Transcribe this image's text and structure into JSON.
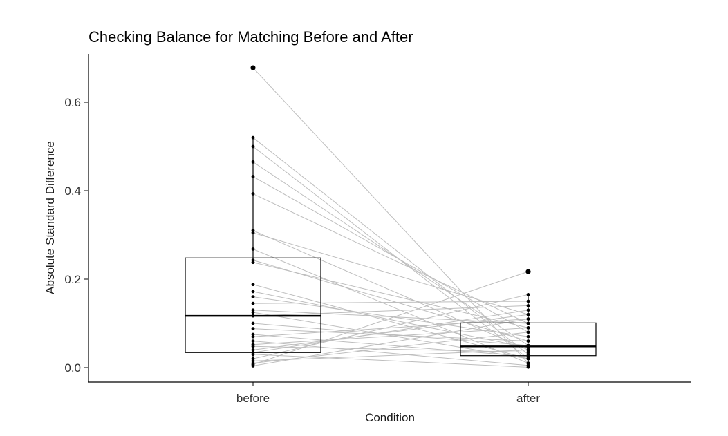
{
  "chart_data": {
    "type": "boxplot",
    "title": "Checking Balance for Matching Before and After",
    "xlabel": "Condition",
    "ylabel": "Absolute Standard Difference",
    "categories": [
      "before",
      "after"
    ],
    "ylim": [
      0,
      0.7
    ],
    "yticks": [
      0.0,
      0.2,
      0.4,
      0.6
    ],
    "ytick_labels": [
      "0.0",
      "0.2",
      "0.4",
      "0.6"
    ],
    "grid": false,
    "box_stats": [
      {
        "category": "before",
        "q1": 0.034,
        "median": 0.117,
        "q3": 0.248,
        "whisker_low": 0.004,
        "whisker_high": 0.52,
        "outliers": [
          0.678
        ]
      },
      {
        "category": "after",
        "q1": 0.027,
        "median": 0.048,
        "q3": 0.101,
        "whisker_low": 0.001,
        "whisker_high": 0.165,
        "outliers": [
          0.217
        ]
      }
    ],
    "pairs": [
      {
        "before": 0.678,
        "after": 0.01
      },
      {
        "before": 0.52,
        "after": 0.03
      },
      {
        "before": 0.5,
        "after": 0.02
      },
      {
        "before": 0.465,
        "after": 0.05
      },
      {
        "before": 0.432,
        "after": 0.08
      },
      {
        "before": 0.393,
        "after": 0.1
      },
      {
        "before": 0.31,
        "after": 0.04
      },
      {
        "before": 0.305,
        "after": 0.12
      },
      {
        "before": 0.268,
        "after": 0.01
      },
      {
        "before": 0.243,
        "after": 0.06
      },
      {
        "before": 0.238,
        "after": 0.09
      },
      {
        "before": 0.188,
        "after": 0.02
      },
      {
        "before": 0.172,
        "after": 0.045
      },
      {
        "before": 0.16,
        "after": 0.07
      },
      {
        "before": 0.145,
        "after": 0.15
      },
      {
        "before": 0.13,
        "after": 0.1
      },
      {
        "before": 0.125,
        "after": 0.02
      },
      {
        "before": 0.117,
        "after": 0.14
      },
      {
        "before": 0.1,
        "after": 0.05
      },
      {
        "before": 0.088,
        "after": 0.06
      },
      {
        "before": 0.075,
        "after": 0.025
      },
      {
        "before": 0.07,
        "after": 0.11
      },
      {
        "before": 0.06,
        "after": 0.005
      },
      {
        "before": 0.052,
        "after": 0.09
      },
      {
        "before": 0.048,
        "after": 0.035
      },
      {
        "before": 0.04,
        "after": 0.12
      },
      {
        "before": 0.034,
        "after": 0.13
      },
      {
        "before": 0.03,
        "after": 0.001
      },
      {
        "before": 0.02,
        "after": 0.165
      },
      {
        "before": 0.015,
        "after": 0.04
      },
      {
        "before": 0.01,
        "after": 0.08
      },
      {
        "before": 0.007,
        "after": 0.217
      },
      {
        "before": 0.004,
        "after": 0.11
      }
    ]
  }
}
